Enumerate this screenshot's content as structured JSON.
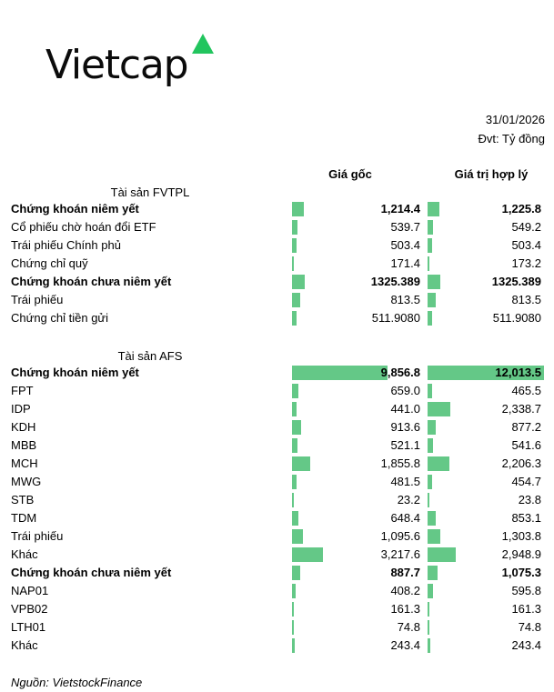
{
  "brand": {
    "name": "Vietcap",
    "triangle_color": "#22c55e"
  },
  "date": "31/01/2026",
  "unit": "Đvt: Tỷ đồng",
  "columns": {
    "cost": "Giá gốc",
    "fair": "Giá trị hợp lý"
  },
  "sections": {
    "fvtpl": "Tài sản FVTPL",
    "afs": "Tài sản AFS"
  },
  "bar_color": "#64c887",
  "source": "Nguồn: VietstockFinance",
  "chart_data": {
    "type": "table",
    "bar_scale_max": 12013.5,
    "fvtpl": [
      {
        "name": "Chứng khoán niêm yết",
        "bold": true,
        "cost": 1214.4,
        "fair": 1225.8,
        "cost_text": "1,214.4",
        "fair_text": "1,225.8"
      },
      {
        "name": "Cổ phiếu chờ hoán đổi ETF",
        "bold": false,
        "cost": 539.7,
        "fair": 549.2,
        "cost_text": "539.7",
        "fair_text": "549.2"
      },
      {
        "name": "Trái phiếu Chính phủ",
        "bold": false,
        "cost": 503.4,
        "fair": 503.4,
        "cost_text": "503.4",
        "fair_text": "503.4"
      },
      {
        "name": "Chứng chỉ quỹ",
        "bold": false,
        "cost": 171.4,
        "fair": 173.2,
        "cost_text": "171.4",
        "fair_text": "173.2"
      },
      {
        "name": "Chứng khoán chưa niêm yết",
        "bold": true,
        "cost": 1325.389,
        "fair": 1325.389,
        "cost_text": "1325.389",
        "fair_text": "1325.389"
      },
      {
        "name": "Trái phiếu",
        "bold": false,
        "cost": 813.5,
        "fair": 813.5,
        "cost_text": "813.5",
        "fair_text": "813.5"
      },
      {
        "name": "Chứng chỉ tiền gửi",
        "bold": false,
        "cost": 511.908,
        "fair": 511.908,
        "cost_text": "511.9080",
        "fair_text": "511.9080"
      }
    ],
    "afs": [
      {
        "name": "Chứng khoán niêm yết",
        "bold": true,
        "cost": 9856.8,
        "fair": 12013.5,
        "cost_text": "9,856.8",
        "fair_text": "12,013.5"
      },
      {
        "name": "FPT",
        "bold": false,
        "cost": 659.0,
        "fair": 465.5,
        "cost_text": "659.0",
        "fair_text": "465.5"
      },
      {
        "name": "IDP",
        "bold": false,
        "cost": 441.0,
        "fair": 2338.7,
        "cost_text": "441.0",
        "fair_text": "2,338.7"
      },
      {
        "name": "KDH",
        "bold": false,
        "cost": 913.6,
        "fair": 877.2,
        "cost_text": "913.6",
        "fair_text": "877.2"
      },
      {
        "name": "MBB",
        "bold": false,
        "cost": 521.1,
        "fair": 541.6,
        "cost_text": "521.1",
        "fair_text": "541.6"
      },
      {
        "name": "MCH",
        "bold": false,
        "cost": 1855.8,
        "fair": 2206.3,
        "cost_text": "1,855.8",
        "fair_text": "2,206.3"
      },
      {
        "name": "MWG",
        "bold": false,
        "cost": 481.5,
        "fair": 454.7,
        "cost_text": "481.5",
        "fair_text": "454.7"
      },
      {
        "name": "STB",
        "bold": false,
        "cost": 23.2,
        "fair": 23.8,
        "cost_text": "23.2",
        "fair_text": "23.8"
      },
      {
        "name": "TDM",
        "bold": false,
        "cost": 648.4,
        "fair": 853.1,
        "cost_text": "648.4",
        "fair_text": "853.1"
      },
      {
        "name": "Trái phiếu",
        "bold": false,
        "cost": 1095.6,
        "fair": 1303.8,
        "cost_text": "1,095.6",
        "fair_text": "1,303.8"
      },
      {
        "name": "Khác",
        "bold": false,
        "cost": 3217.6,
        "fair": 2948.9,
        "cost_text": "3,217.6",
        "fair_text": "2,948.9"
      },
      {
        "name": "Chứng khoán chưa niêm yết",
        "bold": true,
        "cost": 887.7,
        "fair": 1075.3,
        "cost_text": "887.7",
        "fair_text": "1,075.3"
      },
      {
        "name": "NAP01",
        "bold": false,
        "cost": 408.2,
        "fair": 595.8,
        "cost_text": "408.2",
        "fair_text": "595.8"
      },
      {
        "name": "VPB02",
        "bold": false,
        "cost": 161.3,
        "fair": 161.3,
        "cost_text": "161.3",
        "fair_text": "161.3"
      },
      {
        "name": "LTH01",
        "bold": false,
        "cost": 74.8,
        "fair": 74.8,
        "cost_text": "74.8",
        "fair_text": "74.8"
      },
      {
        "name": "Khác",
        "bold": false,
        "cost": 243.4,
        "fair": 243.4,
        "cost_text": "243.4",
        "fair_text": "243.4"
      }
    ]
  }
}
